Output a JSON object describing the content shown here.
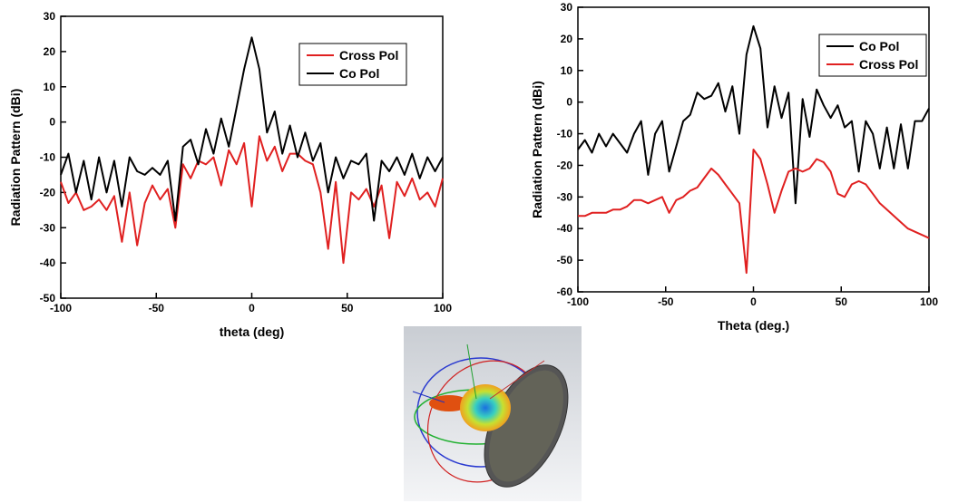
{
  "chart_data": [
    {
      "type": "line",
      "xlabel": "theta (deg)",
      "ylabel": "Radiation Pattern (dBi)",
      "x": [
        -100,
        -96,
        -92,
        -88,
        -84,
        -80,
        -76,
        -72,
        -68,
        -64,
        -60,
        -56,
        -52,
        -48,
        -44,
        -40,
        -36,
        -32,
        -28,
        -24,
        -20,
        -16,
        -12,
        -8,
        -4,
        0,
        4,
        8,
        12,
        16,
        20,
        24,
        28,
        32,
        36,
        40,
        44,
        48,
        52,
        56,
        60,
        64,
        68,
        72,
        76,
        80,
        84,
        88,
        92,
        96,
        100
      ],
      "series": [
        {
          "name": "Cross Pol",
          "color": "#e02020",
          "values": [
            -17,
            -23,
            -20,
            -25,
            -24,
            -22,
            -25,
            -21,
            -34,
            -20,
            -35,
            -23,
            -18,
            -22,
            -19,
            -30,
            -12,
            -16,
            -11,
            -12,
            -10,
            -18,
            -8,
            -12,
            -6,
            -24,
            -4,
            -11,
            -7,
            -14,
            -9,
            -9,
            -11,
            -12,
            -20,
            -36,
            -17,
            -40,
            -20,
            -22,
            -19,
            -24,
            -18,
            -33,
            -17,
            -21,
            -16,
            -22,
            -20,
            -24,
            -16
          ]
        },
        {
          "name": "Co Pol",
          "color": "#000000",
          "values": [
            -15,
            -9,
            -20,
            -11,
            -22,
            -10,
            -20,
            -11,
            -24,
            -10,
            -14,
            -15,
            -13,
            -15,
            -11,
            -28,
            -7,
            -5,
            -12,
            -2,
            -9,
            1,
            -7,
            4,
            15,
            24,
            15,
            -3,
            3,
            -9,
            -1,
            -10,
            -3,
            -11,
            -6,
            -20,
            -10,
            -16,
            -11,
            -12,
            -9,
            -28,
            -11,
            -14,
            -10,
            -15,
            -9,
            -16,
            -10,
            -14,
            -10
          ]
        }
      ],
      "xlim": [
        -100,
        100
      ],
      "xticks": [
        -100,
        -50,
        0,
        50,
        100
      ],
      "ylim": [
        -50,
        30
      ],
      "yticks": [
        -50,
        -40,
        -30,
        -20,
        -10,
        0,
        10,
        20,
        30
      ],
      "legend": "upper right"
    },
    {
      "type": "line",
      "xlabel": "Theta (deg.)",
      "ylabel": "Radiation Pattern (dBi)",
      "x": [
        -100,
        -96,
        -92,
        -88,
        -84,
        -80,
        -76,
        -72,
        -68,
        -64,
        -60,
        -56,
        -52,
        -48,
        -44,
        -40,
        -36,
        -32,
        -28,
        -24,
        -20,
        -16,
        -12,
        -8,
        -4,
        0,
        4,
        8,
        12,
        16,
        20,
        24,
        28,
        32,
        36,
        40,
        44,
        48,
        52,
        56,
        60,
        64,
        68,
        72,
        76,
        80,
        84,
        88,
        92,
        96,
        100
      ],
      "series": [
        {
          "name": "Co Pol",
          "color": "#000000",
          "values": [
            -15,
            -12,
            -16,
            -10,
            -14,
            -10,
            -13,
            -16,
            -10,
            -6,
            -23,
            -10,
            -6,
            -22,
            -14,
            -6,
            -4,
            3,
            1,
            2,
            6,
            -3,
            5,
            -10,
            15,
            24,
            17,
            -8,
            5,
            -5,
            3,
            -32,
            1,
            -11,
            4,
            -1,
            -5,
            -1,
            -8,
            -6,
            -22,
            -6,
            -10,
            -21,
            -8,
            -21,
            -7,
            -21,
            -6,
            -6,
            -2
          ]
        },
        {
          "name": "Cross Pol",
          "color": "#e02020",
          "values": [
            -36,
            -36,
            -35,
            -35,
            -35,
            -34,
            -34,
            -33,
            -31,
            -31,
            -32,
            -31,
            -30,
            -35,
            -31,
            -30,
            -28,
            -27,
            -24,
            -21,
            -23,
            -26,
            -29,
            -32,
            -54,
            -15,
            -18,
            -26,
            -35,
            -28,
            -22,
            -21,
            -22,
            -21,
            -18,
            -19,
            -22,
            -29,
            -30,
            -26,
            -25,
            -26,
            -29,
            -32,
            -34,
            -36,
            -38,
            -40,
            -41,
            -42,
            -43
          ]
        }
      ],
      "xlim": [
        -100,
        100
      ],
      "xticks": [
        -100,
        -50,
        0,
        50,
        100
      ],
      "ylim": [
        -60,
        30
      ],
      "yticks": [
        -60,
        -50,
        -40,
        -30,
        -20,
        -10,
        0,
        10,
        20,
        30
      ],
      "legend": "upper left"
    }
  ]
}
